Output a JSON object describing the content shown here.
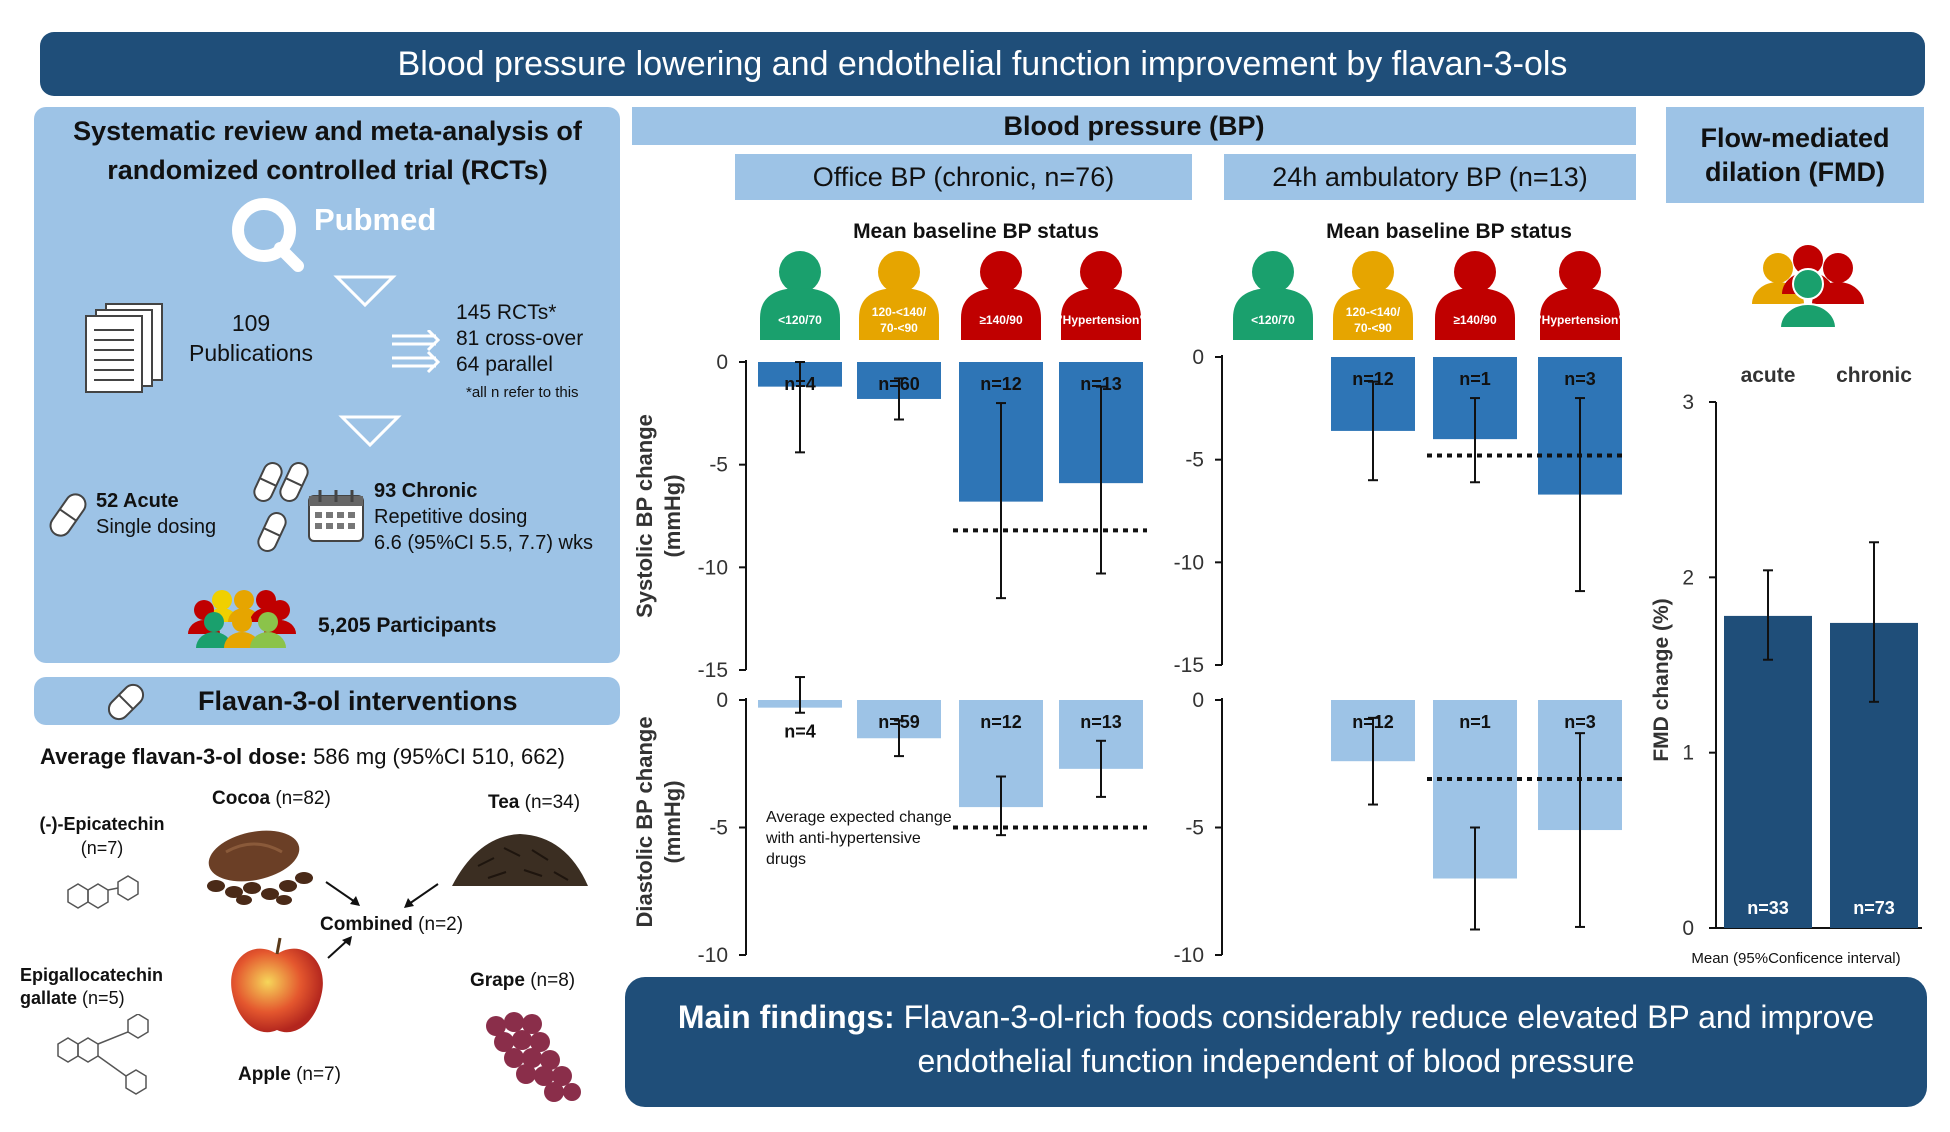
{
  "title": "Blood pressure lowering and endothelial function improvement by flavan-3-ols",
  "review": {
    "heading_line1": "Systematic review and meta-analysis of",
    "heading_line2": "randomized controlled trial (RCTs)",
    "pubmed_label": "Pubmed",
    "publications_count": "109",
    "publications_label": "Publications",
    "rcts": "145 RCTs*",
    "crossover": "81 cross-over",
    "parallel": "64 parallel",
    "footnote": "*all n refer to this",
    "acute_title": "52 Acute",
    "acute_sub": "Single dosing",
    "chronic_title": "93 Chronic",
    "chronic_sub1": "Repetitive dosing",
    "chronic_sub2": "6.6 (95%CI 5.5, 7.7) wks",
    "participants": "5,205 Participants"
  },
  "interventions": {
    "heading": "Flavan-3-ol interventions",
    "dose_label": "Average flavan-3-ol dose:",
    "dose_value": "586 mg (95%CI 510, 662)",
    "epicatechin": "(-)-Epicatechin",
    "epicatechin_n": "(n=7)",
    "cocoa": "Cocoa",
    "cocoa_n": "(n=82)",
    "tea": "Tea",
    "tea_n": "(n=34)",
    "combined": "Combined",
    "combined_n": "(n=2)",
    "egcg1": "Epigallocatechin",
    "egcg2": "gallate",
    "egcg_n": "(n=5)",
    "grape": "Grape",
    "grape_n": "(n=8)",
    "apple": "Apple",
    "apple_n": "(n=7)"
  },
  "bp": {
    "heading": "Blood pressure (BP)",
    "office_title": "Office BP (chronic, n=76)",
    "ambulatory_title": "24h ambulatory BP (n=13)",
    "status_label": "Mean baseline BP status",
    "categories": [
      "<120/70",
      "120-<140/\n70-<90",
      "≥140/90",
      "\"Hypertension\""
    ],
    "category_colors": [
      "#1aa06d",
      "#e6a500",
      "#c00000",
      "#c00000"
    ],
    "systolic_ylabel": "Systolic BP change (mmHg)",
    "diastolic_ylabel": "Diastolic BP change (mmHg)",
    "annotation": "Average expected change with anti-hypertensive drugs"
  },
  "fmd": {
    "heading_line1": "Flow-mediated",
    "heading_line2": "dilation (FMD)",
    "ylabel": "FMD change (%)",
    "footnote": "Mean (95%Conficence interval)"
  },
  "findings": {
    "label": "Main findings:",
    "text1": " Flavan-3-ol-rich foods considerably reduce elevated BP and improve",
    "text2": "endothelial function independent of blood pressure"
  },
  "chart_data": [
    {
      "type": "bar",
      "title": "Office BP (chronic, n=76)",
      "ylabel": "Systolic BP change (mmHg)",
      "categories": [
        "<120/70",
        "120-<140/70-<90",
        "≥140/90",
        "\"Hypertension\""
      ],
      "values": [
        -1.2,
        -1.8,
        -6.8,
        -5.9
      ],
      "ci_low": [
        -4.4,
        -2.8,
        -11.5,
        -10.3
      ],
      "ci_high": [
        0.0,
        -0.8,
        -2.0,
        -1.2
      ],
      "n": [
        "n=4",
        "n=60",
        "n=12",
        "n=13"
      ],
      "reference": -8.2,
      "ylim": [
        -15,
        0
      ],
      "yticks": [
        0,
        -5,
        -10,
        -15
      ]
    },
    {
      "type": "bar",
      "title": "Office BP (chronic, n=76)",
      "ylabel": "Diastolic BP change (mmHg)",
      "categories": [
        "<120/70",
        "120-<140/70-<90",
        "≥140/90",
        "\"Hypertension\""
      ],
      "values": [
        -0.3,
        -1.5,
        -4.2,
        -2.7
      ],
      "ci_low": [
        -0.5,
        -2.2,
        -5.3,
        -3.8
      ],
      "ci_high": [
        0.9,
        -0.8,
        -3.0,
        -1.6
      ],
      "n": [
        "n=4",
        "n=59",
        "n=12",
        "n=13"
      ],
      "reference": -5.0,
      "ylim": [
        -10,
        0
      ],
      "yticks": [
        0,
        -5,
        -10
      ]
    },
    {
      "type": "bar",
      "title": "24h ambulatory BP (n=13)",
      "ylabel": "Systolic BP change (mmHg)",
      "categories": [
        "<120/70",
        "120-<140/70-<90",
        "≥140/90",
        "\"Hypertension\""
      ],
      "values": [
        null,
        -3.6,
        -4.0,
        -6.7
      ],
      "ci_low": [
        null,
        -6.0,
        -6.1,
        -11.4
      ],
      "ci_high": [
        null,
        -1.2,
        -2.0,
        -2.0
      ],
      "n": [
        "",
        "n=12",
        "n=1",
        "n=3"
      ],
      "reference": -4.8,
      "ylim": [
        -15,
        0
      ],
      "yticks": [
        0,
        -5,
        -10,
        -15
      ]
    },
    {
      "type": "bar",
      "title": "24h ambulatory BP (n=13)",
      "ylabel": "Diastolic BP change (mmHg)",
      "categories": [
        "<120/70",
        "120-<140/70-<90",
        "≥140/90",
        "\"Hypertension\""
      ],
      "values": [
        null,
        -2.4,
        -7.0,
        -5.1
      ],
      "ci_low": [
        null,
        -4.1,
        -9.0,
        -8.9
      ],
      "ci_high": [
        null,
        -0.7,
        -5.0,
        -1.3
      ],
      "n": [
        "",
        "n=12",
        "n=1",
        "n=3"
      ],
      "reference": -3.1,
      "ylim": [
        -10,
        0
      ],
      "yticks": [
        0,
        -5,
        -10
      ]
    },
    {
      "type": "bar",
      "title": "Flow-mediated dilation (FMD)",
      "ylabel": "FMD change (%)",
      "xlabel": "Mean (95%Conficence interval)",
      "categories": [
        "acute",
        "chronic"
      ],
      "values": [
        1.78,
        1.74
      ],
      "ci_low": [
        1.53,
        1.29
      ],
      "ci_high": [
        2.04,
        2.2
      ],
      "n": [
        "n=33",
        "n=73"
      ],
      "ylim": [
        0,
        3
      ],
      "yticks": [
        0,
        1,
        2,
        3
      ]
    }
  ]
}
